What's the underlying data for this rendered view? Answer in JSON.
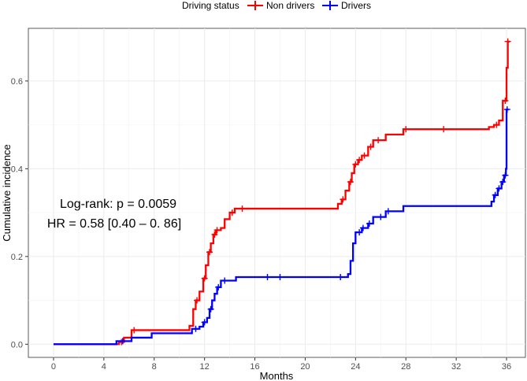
{
  "chart_data": {
    "type": "line",
    "subtype": "step",
    "title": "",
    "xlabel": "Months",
    "ylabel": "Cumulative incidence",
    "xlim": [
      -2,
      37.5
    ],
    "ylim": [
      -0.03,
      0.72
    ],
    "xticks": [
      0,
      4,
      8,
      12,
      16,
      20,
      24,
      28,
      32,
      36
    ],
    "yticks": [
      0.0,
      0.2,
      0.4,
      0.6
    ],
    "ytick_labels": [
      "0.0",
      "0.2",
      "0.4",
      "0.6"
    ],
    "grid": true,
    "legend": {
      "title": "Driving status",
      "position": "top",
      "entries": [
        "Non drivers",
        "Drivers"
      ]
    },
    "annotations": [
      "Log-rank: p = 0.0059",
      "HR = 0.58 [0.40 – 0. 86]"
    ],
    "series": [
      {
        "name": "Non drivers",
        "color": "#ff0000",
        "steps": [
          [
            0,
            0.0
          ],
          [
            5.2,
            0.005
          ],
          [
            5.6,
            0.015
          ],
          [
            6.2,
            0.032
          ],
          [
            10.8,
            0.042
          ],
          [
            11.1,
            0.08
          ],
          [
            11.3,
            0.1
          ],
          [
            11.6,
            0.12
          ],
          [
            11.9,
            0.15
          ],
          [
            12.1,
            0.18
          ],
          [
            12.3,
            0.21
          ],
          [
            12.5,
            0.23
          ],
          [
            12.7,
            0.25
          ],
          [
            12.9,
            0.26
          ],
          [
            13.3,
            0.265
          ],
          [
            13.6,
            0.285
          ],
          [
            14.0,
            0.3
          ],
          [
            14.4,
            0.309
          ],
          [
            22.6,
            0.32
          ],
          [
            22.9,
            0.33
          ],
          [
            23.2,
            0.35
          ],
          [
            23.5,
            0.37
          ],
          [
            23.7,
            0.39
          ],
          [
            23.9,
            0.41
          ],
          [
            24.2,
            0.42
          ],
          [
            24.5,
            0.43
          ],
          [
            25.0,
            0.45
          ],
          [
            25.4,
            0.465
          ],
          [
            26.4,
            0.478
          ],
          [
            27.8,
            0.49
          ],
          [
            34.6,
            0.495
          ],
          [
            35.0,
            0.5
          ],
          [
            35.4,
            0.51
          ],
          [
            35.7,
            0.555
          ],
          [
            36.0,
            0.63
          ],
          [
            36.1,
            0.69
          ]
        ],
        "censor_times": [
          5.4,
          6.4,
          11.4,
          12.0,
          12.4,
          12.8,
          13.0,
          14.2,
          15.0,
          23.0,
          23.6,
          24.0,
          24.3,
          24.7,
          25.2,
          25.8,
          28.0,
          31.0,
          35.2,
          35.9,
          36.1
        ]
      },
      {
        "name": "Drivers",
        "color": "#0000ff",
        "steps": [
          [
            0,
            0.0
          ],
          [
            5.0,
            0.007
          ],
          [
            6.2,
            0.015
          ],
          [
            7.8,
            0.025
          ],
          [
            11.0,
            0.035
          ],
          [
            11.6,
            0.04
          ],
          [
            11.9,
            0.05
          ],
          [
            12.2,
            0.06
          ],
          [
            12.4,
            0.08
          ],
          [
            12.6,
            0.1
          ],
          [
            12.8,
            0.115
          ],
          [
            13.0,
            0.13
          ],
          [
            13.3,
            0.145
          ],
          [
            14.5,
            0.153
          ],
          [
            23.4,
            0.16
          ],
          [
            23.6,
            0.19
          ],
          [
            23.8,
            0.23
          ],
          [
            24.0,
            0.255
          ],
          [
            24.5,
            0.265
          ],
          [
            25.0,
            0.275
          ],
          [
            25.4,
            0.29
          ],
          [
            26.4,
            0.303
          ],
          [
            27.8,
            0.315
          ],
          [
            34.8,
            0.325
          ],
          [
            35.0,
            0.34
          ],
          [
            35.3,
            0.355
          ],
          [
            35.6,
            0.37
          ],
          [
            35.8,
            0.385
          ],
          [
            35.95,
            0.4
          ],
          [
            36.0,
            0.535
          ]
        ],
        "censor_times": [
          5.5,
          11.3,
          12.0,
          12.5,
          13.1,
          13.6,
          17.0,
          18.0,
          22.8,
          24.3,
          24.6,
          25.1,
          26.0,
          26.6,
          35.1,
          35.4,
          35.7,
          35.9,
          36.05
        ]
      }
    ]
  }
}
